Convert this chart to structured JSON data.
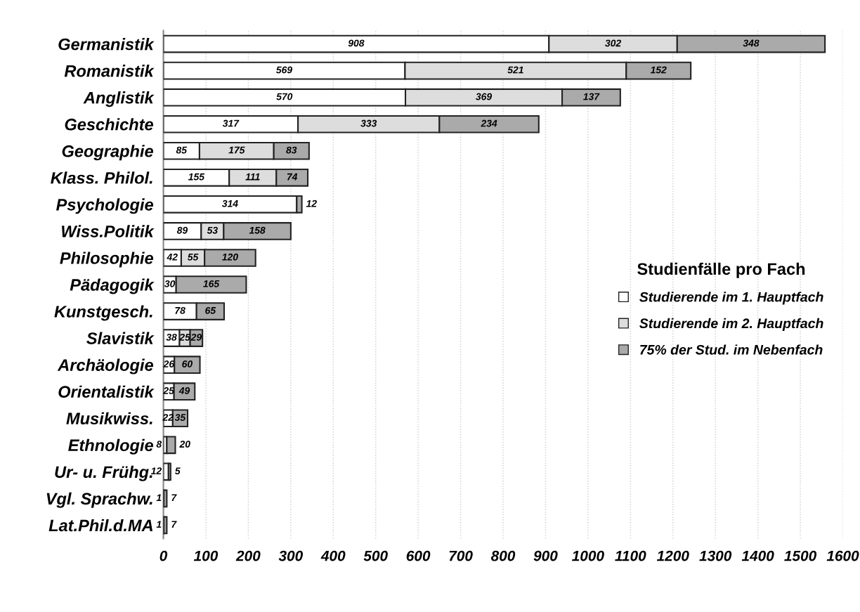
{
  "chart_data": {
    "type": "bar",
    "orientation": "horizontal",
    "stacked": true,
    "legend_title": "Studienfälle pro Fach",
    "legend": "right",
    "categories": [
      "Germanistik",
      "Romanistik",
      "Anglistik",
      "Geschichte",
      "Geographie",
      "Klass. Philol.",
      "Psychologie",
      "Wiss.Politik",
      "Philosophie",
      "Pädagogik",
      "Kunstgesch.",
      "Slavistik",
      "Archäologie",
      "Orientalistik",
      "Musikwiss.",
      "Ethnologie",
      "Ur- u. Frühg.",
      "Vgl. Sprachw.",
      "Lat.Phil.d.MA"
    ],
    "series": [
      {
        "name": "Studierende im 1. Hauptfach",
        "color": "#ffffff",
        "values": [
          908,
          569,
          570,
          317,
          85,
          155,
          314,
          89,
          42,
          30,
          78,
          38,
          26,
          25,
          22,
          8,
          12,
          1,
          1
        ]
      },
      {
        "name": "Studierende im 2. Hauptfach",
        "color": "#dddddd",
        "values": [
          302,
          521,
          369,
          333,
          175,
          111,
          null,
          53,
          55,
          null,
          null,
          25,
          null,
          null,
          null,
          null,
          null,
          null,
          null
        ]
      },
      {
        "name": "75% der Stud. im Nebenfach",
        "color": "#aaaaaa",
        "values": [
          348,
          152,
          137,
          234,
          83,
          74,
          12,
          158,
          120,
          165,
          65,
          29,
          60,
          49,
          35,
          20,
          5,
          7,
          7
        ]
      }
    ],
    "data_labels": true,
    "xlim": [
      0,
      1600
    ],
    "xticks": [
      0,
      100,
      200,
      300,
      400,
      500,
      600,
      700,
      800,
      900,
      1000,
      1100,
      1200,
      1300,
      1400,
      1500,
      1600
    ],
    "grid": "x"
  }
}
